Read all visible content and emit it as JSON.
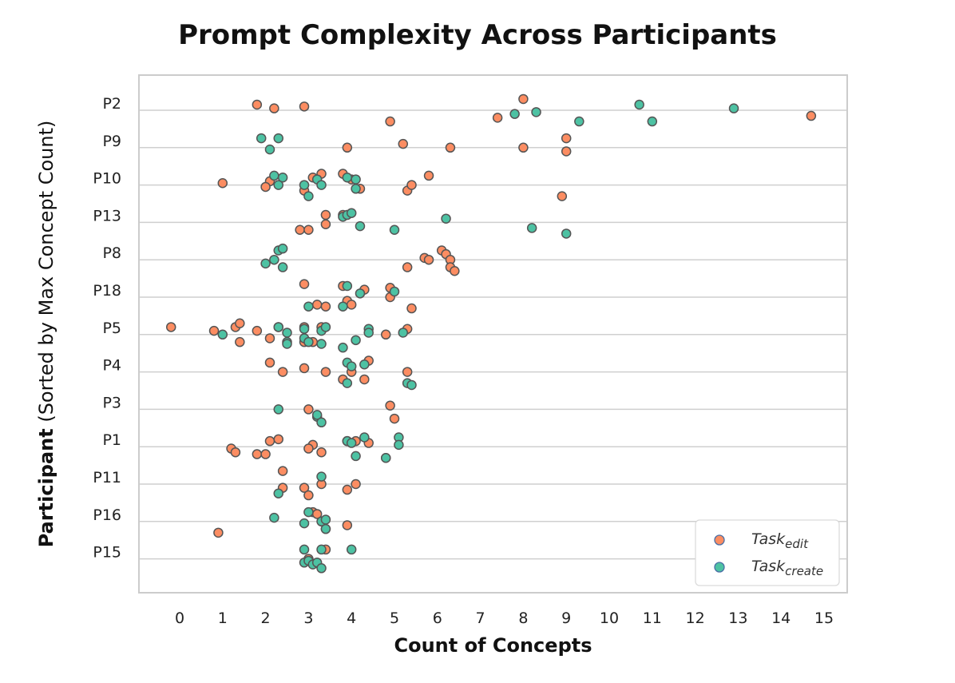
{
  "chart_data": {
    "type": "scatter",
    "title": "Prompt Complexity Across Participants",
    "xlabel": "Count of Concepts",
    "ylabel_bold": "Participant",
    "ylabel_rest": " (Sorted by Max  Concept Count)",
    "xlim": [
      -1,
      15.4
    ],
    "xticks": [
      0,
      1,
      2,
      3,
      4,
      5,
      6,
      7,
      8,
      9,
      10,
      11,
      12,
      13,
      14,
      15
    ],
    "categories": [
      "P2",
      "P9",
      "P10",
      "P13",
      "P8",
      "P18",
      "P5",
      "P4",
      "P3",
      "P1",
      "P11",
      "P16",
      "P15"
    ],
    "grid": "horizontal",
    "legend_position": "bottom-right",
    "colors": {
      "edit": "#fc8d62",
      "create": "#4dc2a3",
      "marker_edge": "#555555"
    },
    "series": [
      {
        "key": "edit",
        "legend_base": "Task",
        "legend_sub": "edit",
        "points": [
          [
            "P2",
            1.8,
            -0.15
          ],
          [
            "P2",
            2.2,
            -0.05
          ],
          [
            "P2",
            2.9,
            -0.1
          ],
          [
            "P2",
            7.4,
            0.2
          ],
          [
            "P2",
            8.0,
            -0.3
          ],
          [
            "P2",
            4.9,
            0.3
          ],
          [
            "P2",
            14.7,
            0.15
          ],
          [
            "P9",
            3.9,
            0.0
          ],
          [
            "P9",
            5.2,
            -0.1
          ],
          [
            "P9",
            6.3,
            0.0
          ],
          [
            "P9",
            8.0,
            0.0
          ],
          [
            "P9",
            9.0,
            -0.25
          ],
          [
            "P9",
            9.0,
            0.1
          ],
          [
            "P10",
            1.0,
            -0.05
          ],
          [
            "P10",
            2.1,
            -0.1
          ],
          [
            "P10",
            2.0,
            0.05
          ],
          [
            "P10",
            3.1,
            -0.2
          ],
          [
            "P10",
            3.3,
            -0.3
          ],
          [
            "P10",
            2.9,
            0.15
          ],
          [
            "P10",
            3.8,
            -0.3
          ],
          [
            "P10",
            4.0,
            -0.15
          ],
          [
            "P10",
            4.2,
            0.1
          ],
          [
            "P10",
            5.3,
            0.15
          ],
          [
            "P10",
            5.4,
            0.0
          ],
          [
            "P10",
            5.8,
            -0.25
          ],
          [
            "P10",
            8.9,
            0.3
          ],
          [
            "P13",
            3.4,
            -0.2
          ],
          [
            "P13",
            3.4,
            0.05
          ],
          [
            "P13",
            2.8,
            0.2
          ],
          [
            "P13",
            3.0,
            0.2
          ],
          [
            "P13",
            3.8,
            -0.2
          ],
          [
            "P8",
            5.3,
            0.2
          ],
          [
            "P8",
            5.7,
            -0.05
          ],
          [
            "P8",
            5.8,
            0.0
          ],
          [
            "P8",
            6.1,
            -0.25
          ],
          [
            "P8",
            6.2,
            -0.15
          ],
          [
            "P8",
            6.3,
            0.0
          ],
          [
            "P8",
            6.3,
            0.2
          ],
          [
            "P8",
            6.4,
            0.3
          ],
          [
            "P18",
            2.9,
            -0.35
          ],
          [
            "P18",
            3.2,
            0.2
          ],
          [
            "P18",
            3.4,
            0.25
          ],
          [
            "P18",
            3.8,
            -0.3
          ],
          [
            "P18",
            3.9,
            0.1
          ],
          [
            "P18",
            4.0,
            0.2
          ],
          [
            "P18",
            4.3,
            -0.2
          ],
          [
            "P18",
            4.9,
            -0.25
          ],
          [
            "P18",
            4.9,
            0.0
          ],
          [
            "P18",
            5.4,
            0.3
          ],
          [
            "P5",
            -0.2,
            -0.2
          ],
          [
            "P5",
            0.8,
            -0.1
          ],
          [
            "P5",
            1.3,
            -0.2
          ],
          [
            "P5",
            1.4,
            -0.3
          ],
          [
            "P5",
            1.4,
            0.2
          ],
          [
            "P5",
            1.8,
            -0.1
          ],
          [
            "P5",
            2.1,
            0.1
          ],
          [
            "P5",
            2.3,
            -0.2
          ],
          [
            "P5",
            2.9,
            -0.2
          ],
          [
            "P5",
            2.9,
            0.2
          ],
          [
            "P5",
            3.1,
            0.2
          ],
          [
            "P5",
            3.3,
            -0.2
          ],
          [
            "P5",
            4.8,
            0.0
          ],
          [
            "P5",
            5.3,
            -0.15
          ],
          [
            "P4",
            2.1,
            -0.25
          ],
          [
            "P4",
            2.4,
            0.0
          ],
          [
            "P4",
            2.9,
            -0.1
          ],
          [
            "P4",
            3.4,
            0.0
          ],
          [
            "P4",
            3.8,
            0.2
          ],
          [
            "P4",
            4.0,
            0.0
          ],
          [
            "P4",
            4.3,
            0.2
          ],
          [
            "P4",
            4.4,
            -0.3
          ],
          [
            "P4",
            5.3,
            0.0
          ],
          [
            "P3",
            3.0,
            0.0
          ],
          [
            "P3",
            4.9,
            -0.1
          ],
          [
            "P3",
            5.0,
            0.25
          ],
          [
            "P1",
            1.2,
            0.05
          ],
          [
            "P1",
            1.3,
            0.15
          ],
          [
            "P1",
            1.8,
            0.2
          ],
          [
            "P1",
            2.0,
            0.2
          ],
          [
            "P1",
            2.1,
            -0.15
          ],
          [
            "P1",
            2.3,
            -0.2
          ],
          [
            "P1",
            3.1,
            -0.05
          ],
          [
            "P1",
            3.0,
            0.05
          ],
          [
            "P1",
            3.3,
            0.15
          ],
          [
            "P1",
            3.9,
            -0.15
          ],
          [
            "P1",
            4.1,
            -0.15
          ],
          [
            "P1",
            4.4,
            -0.1
          ],
          [
            "P11",
            2.4,
            -0.35
          ],
          [
            "P11",
            2.4,
            0.1
          ],
          [
            "P11",
            2.9,
            0.1
          ],
          [
            "P11",
            3.0,
            0.3
          ],
          [
            "P11",
            3.3,
            0.0
          ],
          [
            "P11",
            3.9,
            0.15
          ],
          [
            "P11",
            4.1,
            0.0
          ],
          [
            "P16",
            0.9,
            0.3
          ],
          [
            "P16",
            3.1,
            -0.25
          ],
          [
            "P16",
            3.2,
            -0.2
          ],
          [
            "P16",
            3.4,
            0.2
          ],
          [
            "P16",
            3.9,
            0.1
          ],
          [
            "P15",
            3.4,
            -0.25
          ],
          [
            "P15",
            3.0,
            0.0
          ]
        ]
      },
      {
        "key": "create",
        "legend_base": "Task",
        "legend_sub": "create",
        "points": [
          [
            "P2",
            7.8,
            0.1
          ],
          [
            "P2",
            8.3,
            0.05
          ],
          [
            "P2",
            9.3,
            0.3
          ],
          [
            "P2",
            10.7,
            -0.15
          ],
          [
            "P2",
            11.0,
            0.3
          ],
          [
            "P2",
            12.9,
            -0.05
          ],
          [
            "P9",
            1.9,
            -0.25
          ],
          [
            "P9",
            2.1,
            0.05
          ],
          [
            "P9",
            2.3,
            -0.25
          ],
          [
            "P10",
            2.2,
            -0.25
          ],
          [
            "P10",
            2.3,
            0.0
          ],
          [
            "P10",
            2.4,
            -0.2
          ],
          [
            "P10",
            2.9,
            0.0
          ],
          [
            "P10",
            3.0,
            0.3
          ],
          [
            "P10",
            3.2,
            -0.15
          ],
          [
            "P10",
            3.3,
            0.0
          ],
          [
            "P10",
            3.9,
            -0.2
          ],
          [
            "P10",
            4.1,
            -0.15
          ],
          [
            "P10",
            4.1,
            0.1
          ],
          [
            "P13",
            3.8,
            -0.15
          ],
          [
            "P13",
            3.9,
            -0.2
          ],
          [
            "P13",
            4.0,
            -0.25
          ],
          [
            "P13",
            4.2,
            0.1
          ],
          [
            "P13",
            5.0,
            0.2
          ],
          [
            "P13",
            6.2,
            -0.1
          ],
          [
            "P13",
            8.2,
            0.15
          ],
          [
            "P13",
            9.0,
            0.3
          ],
          [
            "P8",
            2.0,
            0.1
          ],
          [
            "P8",
            2.3,
            -0.25
          ],
          [
            "P8",
            2.4,
            -0.3
          ],
          [
            "P8",
            2.2,
            0.0
          ],
          [
            "P8",
            2.4,
            0.2
          ],
          [
            "P18",
            3.0,
            0.25
          ],
          [
            "P18",
            3.8,
            0.25
          ],
          [
            "P18",
            3.9,
            -0.3
          ],
          [
            "P18",
            4.2,
            -0.1
          ],
          [
            "P18",
            5.0,
            -0.15
          ],
          [
            "P5",
            1.0,
            0.0
          ],
          [
            "P5",
            2.3,
            -0.2
          ],
          [
            "P5",
            2.5,
            -0.05
          ],
          [
            "P5",
            2.5,
            0.2
          ],
          [
            "P5",
            2.5,
            0.25
          ],
          [
            "P5",
            2.9,
            -0.15
          ],
          [
            "P5",
            2.9,
            0.1
          ],
          [
            "P5",
            3.0,
            0.2
          ],
          [
            "P5",
            3.3,
            -0.1
          ],
          [
            "P5",
            3.4,
            -0.2
          ],
          [
            "P5",
            3.3,
            0.25
          ],
          [
            "P5",
            3.8,
            0.35
          ],
          [
            "P5",
            4.1,
            0.15
          ],
          [
            "P5",
            4.4,
            -0.15
          ],
          [
            "P5",
            4.4,
            -0.05
          ],
          [
            "P5",
            5.2,
            -0.05
          ],
          [
            "P4",
            3.9,
            -0.25
          ],
          [
            "P4",
            4.0,
            -0.15
          ],
          [
            "P4",
            3.9,
            0.3
          ],
          [
            "P4",
            4.3,
            -0.2
          ],
          [
            "P4",
            5.3,
            0.3
          ],
          [
            "P4",
            5.4,
            0.35
          ],
          [
            "P3",
            2.3,
            0.0
          ],
          [
            "P3",
            3.2,
            0.2
          ],
          [
            "P3",
            3.2,
            0.15
          ],
          [
            "P3",
            3.3,
            0.35
          ],
          [
            "P1",
            3.9,
            -0.15
          ],
          [
            "P1",
            4.0,
            -0.1
          ],
          [
            "P1",
            4.3,
            -0.25
          ],
          [
            "P1",
            4.1,
            0.25
          ],
          [
            "P1",
            4.8,
            0.3
          ],
          [
            "P1",
            4.8,
            0.3
          ],
          [
            "P1",
            5.1,
            -0.25
          ],
          [
            "P1",
            5.1,
            -0.05
          ],
          [
            "P11",
            2.3,
            0.25
          ],
          [
            "P11",
            3.3,
            -0.2
          ],
          [
            "P16",
            2.2,
            -0.1
          ],
          [
            "P16",
            3.0,
            -0.25
          ],
          [
            "P16",
            2.9,
            0.05
          ],
          [
            "P16",
            3.3,
            0.0
          ],
          [
            "P16",
            3.4,
            -0.05
          ],
          [
            "P16",
            3.4,
            0.2
          ],
          [
            "P15",
            2.9,
            -0.25
          ],
          [
            "P15",
            3.3,
            -0.25
          ],
          [
            "P15",
            4.0,
            -0.25
          ],
          [
            "P15",
            2.9,
            0.1
          ],
          [
            "P15",
            3.0,
            0.05
          ],
          [
            "P15",
            3.1,
            0.15
          ],
          [
            "P15",
            3.2,
            0.1
          ],
          [
            "P15",
            3.3,
            0.25
          ]
        ]
      }
    ]
  }
}
